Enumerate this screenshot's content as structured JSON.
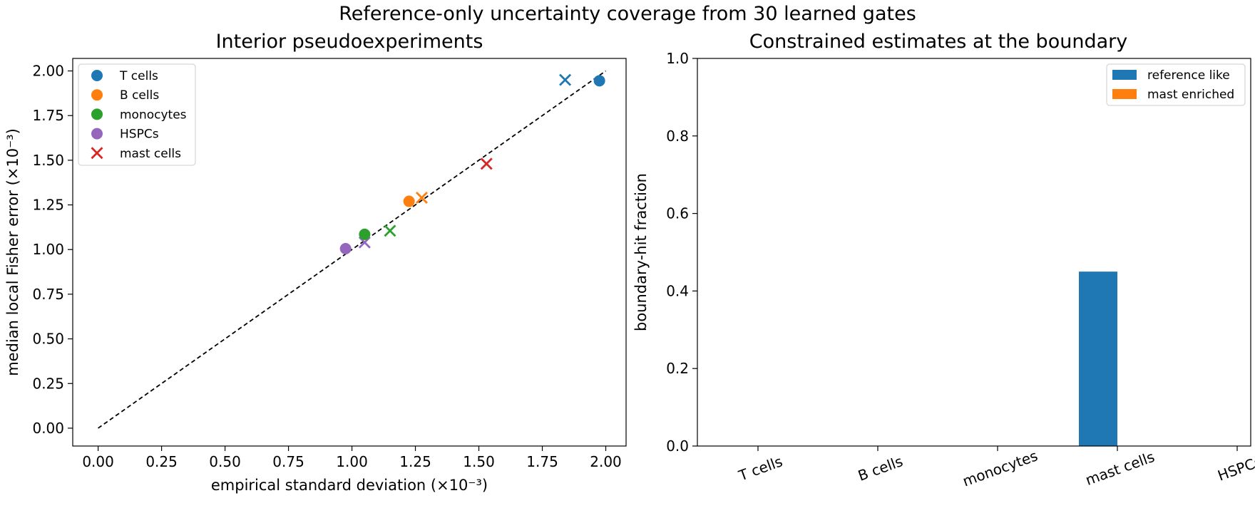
{
  "figure": {
    "suptitle": "Reference-only uncertainty coverage from 30 learned gates"
  },
  "chart_data": [
    {
      "type": "scatter",
      "title": "Interior pseudoexperiments",
      "xlabel": "empirical standard deviation (×10⁻³)",
      "ylabel": "median local Fisher error (×10⁻³)",
      "xlim": [
        -0.1,
        2.08
      ],
      "ylim": [
        -0.1,
        2.07
      ],
      "xticks": [
        "0.00",
        "0.25",
        "0.50",
        "0.75",
        "1.00",
        "1.25",
        "1.50",
        "1.75",
        "2.00"
      ],
      "yticks": [
        "0.00",
        "0.25",
        "0.50",
        "0.75",
        "1.00",
        "1.25",
        "1.50",
        "1.75",
        "2.00"
      ],
      "grid": false,
      "legend_position": "top-left",
      "series": [
        {
          "name": "T cells",
          "color": "#1f77b4",
          "marker": "circle",
          "points": [
            [
              1.975,
              1.945
            ]
          ]
        },
        {
          "name": "B cells",
          "color": "#ff7f0e",
          "marker": "circle",
          "points": [
            [
              1.225,
              1.27
            ]
          ]
        },
        {
          "name": "monocytes",
          "color": "#2ca02c",
          "marker": "circle",
          "points": [
            [
              1.05,
              1.085
            ]
          ]
        },
        {
          "name": "HSPCs",
          "color": "#9467bd",
          "marker": "circle",
          "points": [
            [
              0.975,
              1.005
            ]
          ]
        },
        {
          "name": "mast cells",
          "color": "#d62728",
          "marker": "x",
          "points": [
            [
              1.53,
              1.48
            ]
          ]
        }
      ],
      "x_markers": [
        {
          "color": "#1f77b4",
          "point": [
            1.84,
            1.95
          ]
        },
        {
          "color": "#ff7f0e",
          "point": [
            1.275,
            1.29
          ]
        },
        {
          "color": "#2ca02c",
          "point": [
            1.15,
            1.105
          ]
        },
        {
          "color": "#9467bd",
          "point": [
            1.05,
            1.04
          ]
        }
      ],
      "reference_line": {
        "from": [
          0,
          0
        ],
        "to": [
          2.0,
          2.0
        ],
        "style": "dashed",
        "color": "#000000"
      }
    },
    {
      "type": "bar",
      "title": "Constrained estimates at the boundary",
      "ylabel": "boundary-hit fraction",
      "categories": [
        "T cells",
        "B cells",
        "monocytes",
        "mast cells",
        "HSPCs"
      ],
      "ylim": [
        0,
        1.0
      ],
      "yticks": [
        "0.0",
        "0.2",
        "0.4",
        "0.6",
        "0.8",
        "1.0"
      ],
      "grid": false,
      "legend_position": "top-right",
      "series": [
        {
          "name": "reference like",
          "color": "#1f77b4",
          "values": [
            0,
            0,
            0,
            0.45,
            0
          ]
        },
        {
          "name": "mast enriched",
          "color": "#ff7f0e",
          "values": [
            0,
            0,
            0,
            0,
            0
          ]
        }
      ]
    }
  ]
}
